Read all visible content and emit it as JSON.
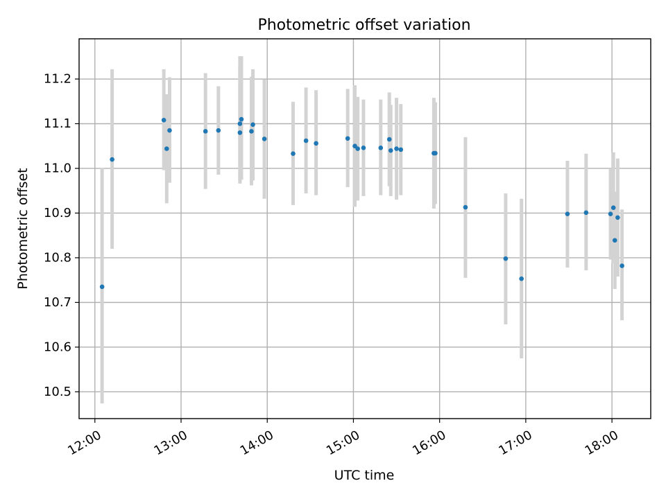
{
  "chart_data": {
    "type": "scatter",
    "title": "Photometric offset variation",
    "xlabel": "UTC time",
    "ylabel": "Photometric offset",
    "xlim": [
      "11:49",
      "18:27"
    ],
    "ylim": [
      10.44,
      11.29
    ],
    "x_ticks": [
      "12:00",
      "13:00",
      "14:00",
      "15:00",
      "16:00",
      "17:00",
      "18:00"
    ],
    "y_ticks": [
      "10.5",
      "10.6",
      "10.7",
      "10.8",
      "10.9",
      "11.0",
      "11.1",
      "11.2"
    ],
    "grid": true,
    "colors": {
      "point": "#1f77b4",
      "errorbar": "#d3d3d3"
    },
    "series": [
      {
        "points": [
          {
            "x": "12:05",
            "y": 10.735,
            "yerr_low": 10.474,
            "yerr_high": 11.001
          },
          {
            "x": "12:12",
            "y": 11.02,
            "yerr_low": 10.82,
            "yerr_high": 11.222
          },
          {
            "x": "12:48",
            "y": 11.108,
            "yerr_low": 10.996,
            "yerr_high": 11.222
          },
          {
            "x": "12:50",
            "y": 11.044,
            "yerr_low": 10.922,
            "yerr_high": 11.166
          },
          {
            "x": "12:52",
            "y": 11.085,
            "yerr_low": 10.968,
            "yerr_high": 11.204
          },
          {
            "x": "13:17",
            "y": 11.083,
            "yerr_low": 10.954,
            "yerr_high": 11.213
          },
          {
            "x": "13:26",
            "y": 11.085,
            "yerr_low": 10.986,
            "yerr_high": 11.184
          },
          {
            "x": "13:41",
            "y": 11.08,
            "yerr_low": 10.966,
            "yerr_high": 11.231
          },
          {
            "x": "13:41",
            "y": 11.1,
            "yerr_low": 10.972,
            "yerr_high": 11.251
          },
          {
            "x": "13:42",
            "y": 11.11,
            "yerr_low": 10.975,
            "yerr_high": 11.251
          },
          {
            "x": "13:49",
            "y": 11.083,
            "yerr_low": 10.962,
            "yerr_high": 11.205
          },
          {
            "x": "13:50",
            "y": 11.098,
            "yerr_low": 10.973,
            "yerr_high": 11.222
          },
          {
            "x": "13:58",
            "y": 11.066,
            "yerr_low": 10.932,
            "yerr_high": 11.199
          },
          {
            "x": "14:18",
            "y": 11.033,
            "yerr_low": 10.918,
            "yerr_high": 11.149
          },
          {
            "x": "14:27",
            "y": 11.062,
            "yerr_low": 10.944,
            "yerr_high": 11.181
          },
          {
            "x": "14:34",
            "y": 11.056,
            "yerr_low": 10.94,
            "yerr_high": 11.175
          },
          {
            "x": "14:56",
            "y": 11.067,
            "yerr_low": 10.958,
            "yerr_high": 11.178
          },
          {
            "x": "15:01",
            "y": 11.05,
            "yerr_low": 10.914,
            "yerr_high": 11.186
          },
          {
            "x": "15:03",
            "y": 11.044,
            "yerr_low": 10.928,
            "yerr_high": 11.16
          },
          {
            "x": "15:07",
            "y": 11.046,
            "yerr_low": 10.938,
            "yerr_high": 11.154
          },
          {
            "x": "15:19",
            "y": 11.046,
            "yerr_low": 10.94,
            "yerr_high": 11.154
          },
          {
            "x": "15:25",
            "y": 11.065,
            "yerr_low": 10.96,
            "yerr_high": 11.17
          },
          {
            "x": "15:26",
            "y": 11.04,
            "yerr_low": 10.938,
            "yerr_high": 11.142
          },
          {
            "x": "15:30",
            "y": 11.044,
            "yerr_low": 10.93,
            "yerr_high": 11.158
          },
          {
            "x": "15:33",
            "y": 11.042,
            "yerr_low": 10.94,
            "yerr_high": 11.144
          },
          {
            "x": "15:56",
            "y": 11.034,
            "yerr_low": 10.91,
            "yerr_high": 11.158
          },
          {
            "x": "15:57",
            "y": 11.034,
            "yerr_low": 10.92,
            "yerr_high": 11.148
          },
          {
            "x": "16:18",
            "y": 10.913,
            "yerr_low": 10.755,
            "yerr_high": 11.07
          },
          {
            "x": "16:46",
            "y": 10.798,
            "yerr_low": 10.651,
            "yerr_high": 10.944
          },
          {
            "x": "16:57",
            "y": 10.753,
            "yerr_low": 10.575,
            "yerr_high": 10.932
          },
          {
            "x": "17:29",
            "y": 10.898,
            "yerr_low": 10.778,
            "yerr_high": 11.017
          },
          {
            "x": "17:42",
            "y": 10.901,
            "yerr_low": 10.772,
            "yerr_high": 11.033
          },
          {
            "x": "17:59",
            "y": 10.898,
            "yerr_low": 10.796,
            "yerr_high": 11.0
          },
          {
            "x": "18:01",
            "y": 10.912,
            "yerr_low": 10.788,
            "yerr_high": 11.036
          },
          {
            "x": "18:02",
            "y": 10.839,
            "yerr_low": 10.73,
            "yerr_high": 10.948
          },
          {
            "x": "18:04",
            "y": 10.89,
            "yerr_low": 10.758,
            "yerr_high": 11.022
          },
          {
            "x": "18:07",
            "y": 10.782,
            "yerr_low": 10.66,
            "yerr_high": 10.908
          }
        ]
      }
    ]
  }
}
